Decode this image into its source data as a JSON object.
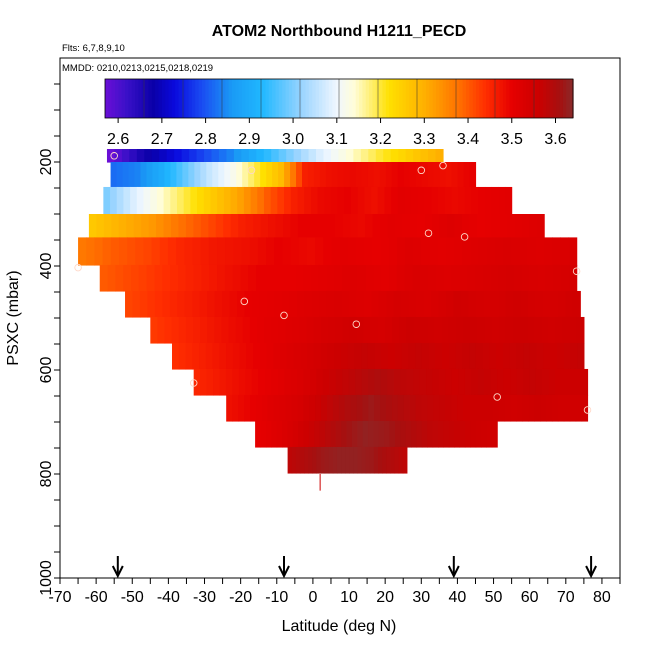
{
  "chart_data": {
    "type": "heatmap",
    "title": "ATOM2 Northbound H1211_PECD",
    "flights_note": "Flts: 6,7,8,9,10",
    "dates_note": "MMDD: 0210,0213,0215,0218,0219",
    "xlabel": "Latitude (deg N)",
    "ylabel": "PSXC (mbar)",
    "xlim": [
      -70,
      85
    ],
    "ylim": [
      1000,
      0
    ],
    "x_ticks": [
      -70,
      -60,
      -50,
      -40,
      -30,
      -20,
      -10,
      0,
      10,
      20,
      30,
      40,
      50,
      60,
      70,
      80
    ],
    "x_tick_labels": [
      "-70",
      "-60",
      "-50",
      "-40",
      "-30",
      "-20",
      "-10",
      "0",
      "10",
      "20",
      "30",
      "40",
      "50",
      "60",
      "70",
      "80"
    ],
    "x_minor_step": 5,
    "y_ticks": [
      200,
      400,
      600,
      800,
      1000
    ],
    "y_tick_labels": [
      "200",
      "400",
      "600",
      "800",
      "1000"
    ],
    "colorbar": {
      "min": 2.57,
      "max": 3.64,
      "ticks": [
        2.6,
        2.7,
        2.8,
        2.9,
        3.0,
        3.1,
        3.2,
        3.3,
        3.4,
        3.5,
        3.6
      ],
      "tick_labels": [
        "2.6",
        "2.7",
        "2.8",
        "2.9",
        "3.0",
        "3.1",
        "3.2",
        "3.3",
        "3.4",
        "3.5",
        "3.6"
      ],
      "stops": [
        {
          "v": 2.57,
          "color": "#6a0fd6"
        },
        {
          "v": 2.62,
          "color": "#3a10c8"
        },
        {
          "v": 2.68,
          "color": "#0a00a8"
        },
        {
          "v": 2.73,
          "color": "#0a0ade"
        },
        {
          "v": 2.79,
          "color": "#1a4af2"
        },
        {
          "v": 2.86,
          "color": "#1a9af5"
        },
        {
          "v": 2.93,
          "color": "#20b8ff"
        },
        {
          "v": 3.02,
          "color": "#9ad4ff"
        },
        {
          "v": 3.1,
          "color": "#f0f7ff"
        },
        {
          "v": 3.14,
          "color": "#fffdd8"
        },
        {
          "v": 3.22,
          "color": "#ffe000"
        },
        {
          "v": 3.3,
          "color": "#ffb000"
        },
        {
          "v": 3.38,
          "color": "#ff7000"
        },
        {
          "v": 3.44,
          "color": "#ff2e00"
        },
        {
          "v": 3.5,
          "color": "#e60000"
        },
        {
          "v": 3.56,
          "color": "#cc0000"
        },
        {
          "v": 3.61,
          "color": "#a61010"
        },
        {
          "v": 3.64,
          "color": "#8a2a2a"
        }
      ]
    },
    "layers": [
      {
        "p_top": 175,
        "p_bot": 200,
        "lat_start": -57,
        "lat_end": 36,
        "values": [
          2.57,
          2.66,
          2.72,
          2.78,
          2.84,
          2.92,
          3.0,
          3.08,
          3.14,
          3.2,
          3.25,
          3.3
        ]
      },
      {
        "p_top": 200,
        "p_bot": 248,
        "lat_start": -56,
        "lat_end": 45,
        "values": [
          2.82,
          2.84,
          2.9,
          2.98,
          3.06,
          3.12,
          3.2,
          3.28,
          3.46,
          3.48,
          3.49,
          3.48,
          3.5,
          3.49,
          3.48,
          3.5
        ]
      },
      {
        "p_top": 248,
        "p_bot": 300,
        "lat_start": -58,
        "lat_end": 55,
        "values": [
          3.0,
          3.08,
          3.14,
          3.2,
          3.26,
          3.32,
          3.4,
          3.46,
          3.49,
          3.5,
          3.48,
          3.51,
          3.5,
          3.49,
          3.5,
          3.51
        ]
      },
      {
        "p_top": 300,
        "p_bot": 345,
        "lat_start": -62,
        "lat_end": 64,
        "values": [
          3.26,
          3.3,
          3.33,
          3.38,
          3.42,
          3.46,
          3.48,
          3.5,
          3.5,
          3.49,
          3.51,
          3.5,
          3.52,
          3.5,
          3.51,
          3.52
        ]
      },
      {
        "p_top": 345,
        "p_bot": 398,
        "lat_start": -65,
        "lat_end": 73,
        "values": [
          3.37,
          3.4,
          3.42,
          3.45,
          3.47,
          3.48,
          3.5,
          3.49,
          3.51,
          3.5,
          3.52,
          3.51,
          3.52,
          3.53,
          3.52,
          3.53
        ]
      },
      {
        "p_top": 398,
        "p_bot": 448,
        "lat_start": -59,
        "lat_end": 73,
        "values": [
          3.4,
          3.42,
          3.44,
          3.46,
          3.48,
          3.5,
          3.5,
          3.51,
          3.52,
          3.51,
          3.53,
          3.52,
          3.53,
          3.54,
          3.53,
          3.54
        ]
      },
      {
        "p_top": 448,
        "p_bot": 498,
        "lat_start": -52,
        "lat_end": 74,
        "values": [
          3.42,
          3.44,
          3.46,
          3.48,
          3.5,
          3.51,
          3.52,
          3.53,
          3.52,
          3.54,
          3.53,
          3.55,
          3.54,
          3.55,
          3.54,
          3.55
        ]
      },
      {
        "p_top": 498,
        "p_bot": 548,
        "lat_start": -45,
        "lat_end": 75,
        "values": [
          3.43,
          3.45,
          3.47,
          3.49,
          3.51,
          3.52,
          3.54,
          3.55,
          3.54,
          3.56,
          3.55,
          3.56,
          3.55,
          3.56,
          3.55,
          3.56
        ]
      },
      {
        "p_top": 548,
        "p_bot": 598,
        "lat_start": -39,
        "lat_end": 75,
        "values": [
          3.44,
          3.46,
          3.48,
          3.5,
          3.52,
          3.54,
          3.56,
          3.57,
          3.56,
          3.57,
          3.56,
          3.57,
          3.56,
          3.57,
          3.56,
          3.57
        ]
      },
      {
        "p_top": 598,
        "p_bot": 648,
        "lat_start": -33,
        "lat_end": 76,
        "values": [
          3.45,
          3.47,
          3.49,
          3.51,
          3.53,
          3.56,
          3.58,
          3.6,
          3.58,
          3.57,
          3.56,
          3.57,
          3.56,
          3.57,
          3.56,
          3.56
        ]
      },
      {
        "p_top": 648,
        "p_bot": 698,
        "lat_start": -24,
        "lat_end": 76,
        "values": [
          3.48,
          3.5,
          3.52,
          3.54,
          3.57,
          3.6,
          3.62,
          3.6,
          3.58,
          3.57,
          3.56,
          3.56,
          3.55,
          3.56,
          3.55,
          3.55
        ]
      },
      {
        "p_top": 698,
        "p_bot": 748,
        "lat_start": -16,
        "lat_end": 51,
        "values": [
          3.5,
          3.52,
          3.55,
          3.58,
          3.61,
          3.63,
          3.62,
          3.6,
          3.58,
          3.57,
          3.56,
          3.55
        ]
      },
      {
        "p_top": 748,
        "p_bot": 798,
        "lat_start": -7,
        "lat_end": 26,
        "values": [
          3.58,
          3.6,
          3.62,
          3.63,
          3.63,
          3.62,
          3.6,
          3.58
        ]
      }
    ],
    "points": [
      {
        "lat": -55,
        "p": 188
      },
      {
        "lat": -17,
        "p": 216
      },
      {
        "lat": 30,
        "p": 216
      },
      {
        "lat": 36,
        "p": 207
      },
      {
        "lat": 32,
        "p": 337
      },
      {
        "lat": 42,
        "p": 344
      },
      {
        "lat": -65,
        "p": 403
      },
      {
        "lat": 73,
        "p": 410
      },
      {
        "lat": -19,
        "p": 468
      },
      {
        "lat": -8,
        "p": 495
      },
      {
        "lat": 12,
        "p": 512
      },
      {
        "lat": -33,
        "p": 625
      },
      {
        "lat": 51,
        "p": 652
      },
      {
        "lat": 76,
        "p": 677
      }
    ],
    "marker_line": {
      "lat": 2,
      "p_top": 800,
      "p_bot": 832
    },
    "arrows": [
      -54,
      -8,
      39,
      77
    ]
  }
}
